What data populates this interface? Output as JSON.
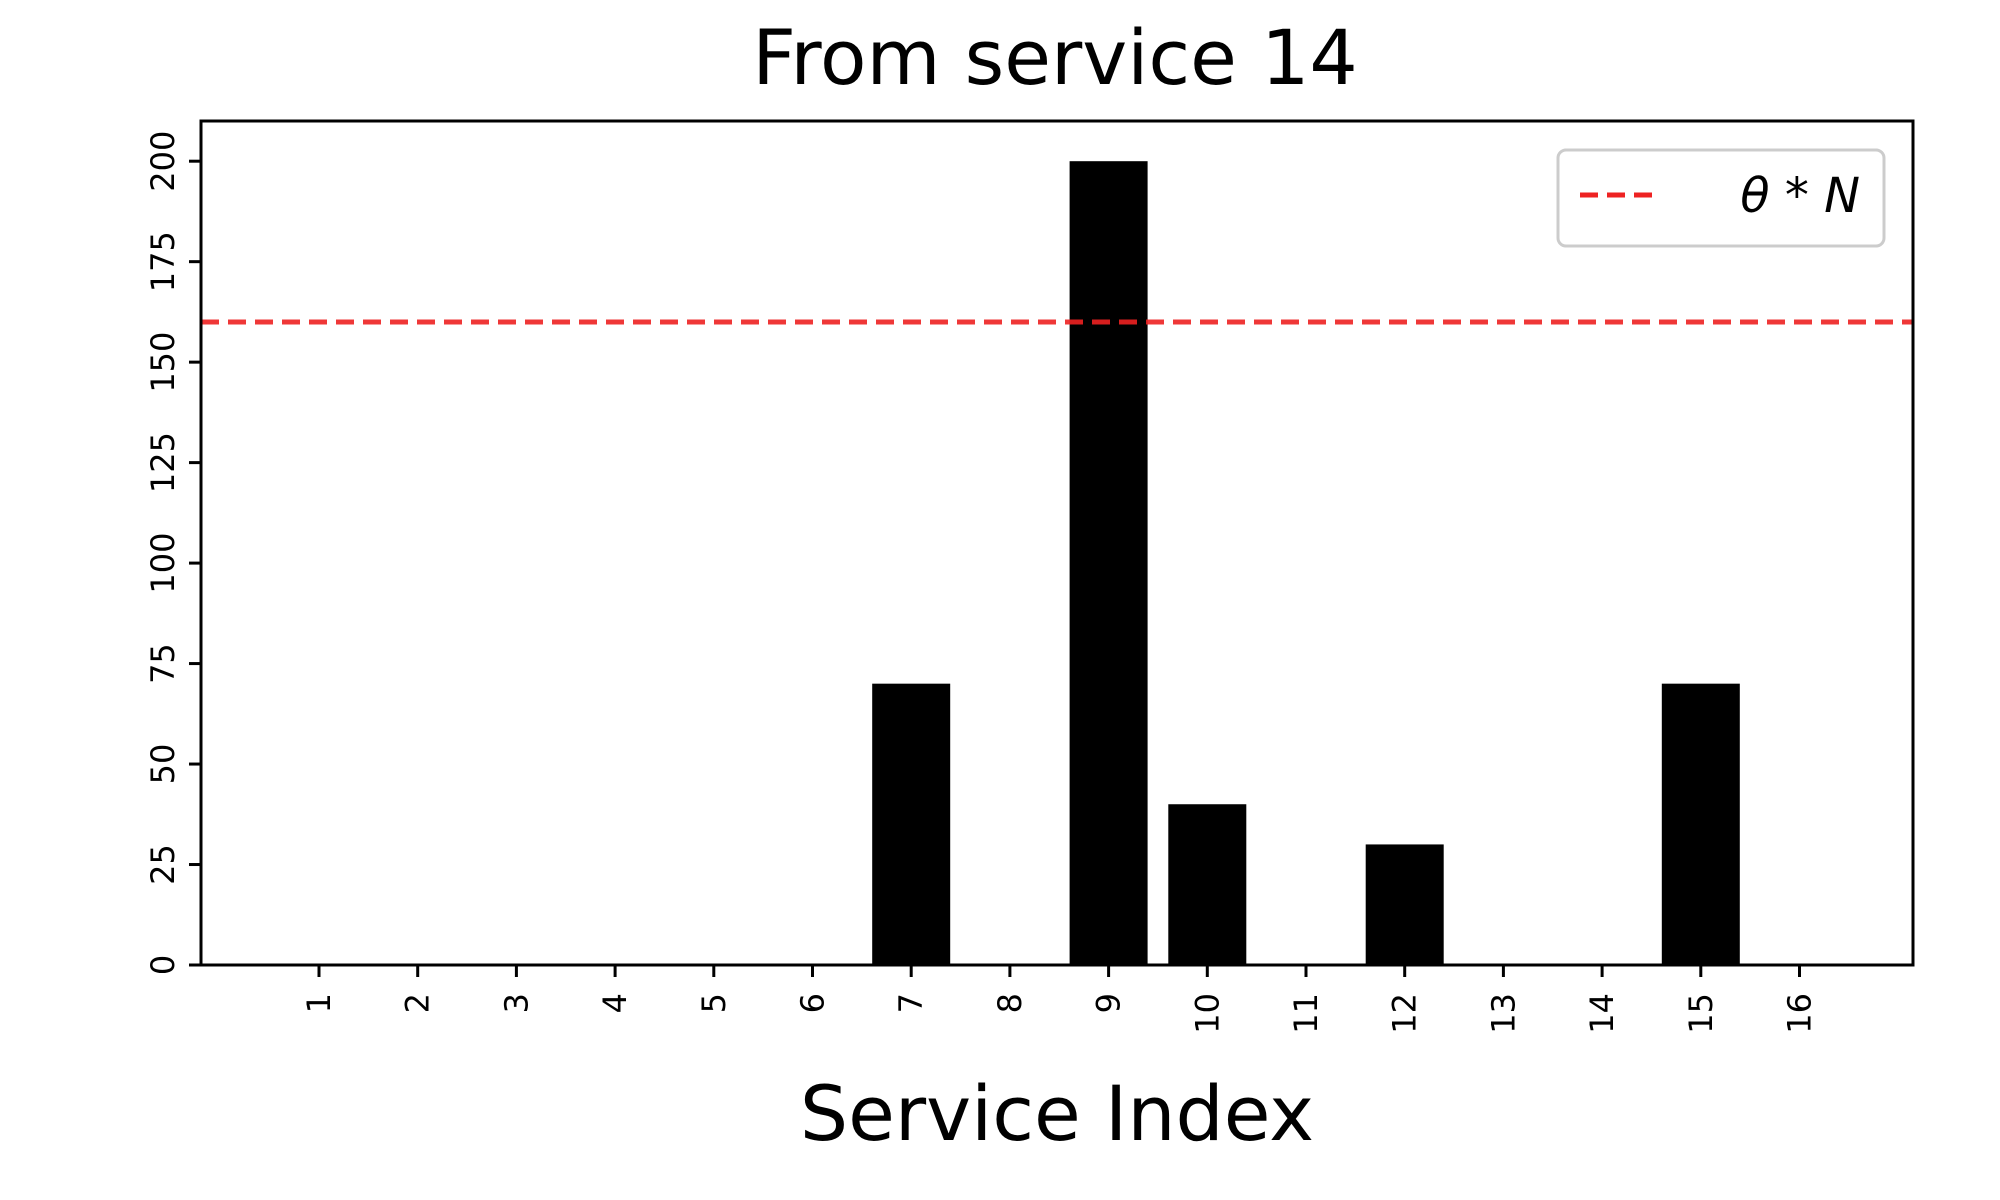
{
  "chart_data": {
    "type": "bar",
    "title": "From service 14",
    "xlabel": "Service Index",
    "ylabel": "",
    "categories": [
      "1",
      "2",
      "3",
      "4",
      "5",
      "6",
      "7",
      "8",
      "9",
      "10",
      "11",
      "12",
      "13",
      "14",
      "15",
      "16"
    ],
    "values": [
      0,
      0,
      0,
      0,
      0,
      0,
      70,
      0,
      200,
      40,
      0,
      30,
      0,
      0,
      70,
      0
    ],
    "ylim": [
      0,
      210
    ],
    "yticks": [
      0,
      25,
      50,
      75,
      100,
      125,
      150,
      175,
      200
    ],
    "bar_color": "#000000",
    "threshold": {
      "value": 160,
      "label": "θ * N",
      "color": "#ee2222",
      "style": "dashed"
    },
    "legend_position": "top-right",
    "grid": false
  }
}
